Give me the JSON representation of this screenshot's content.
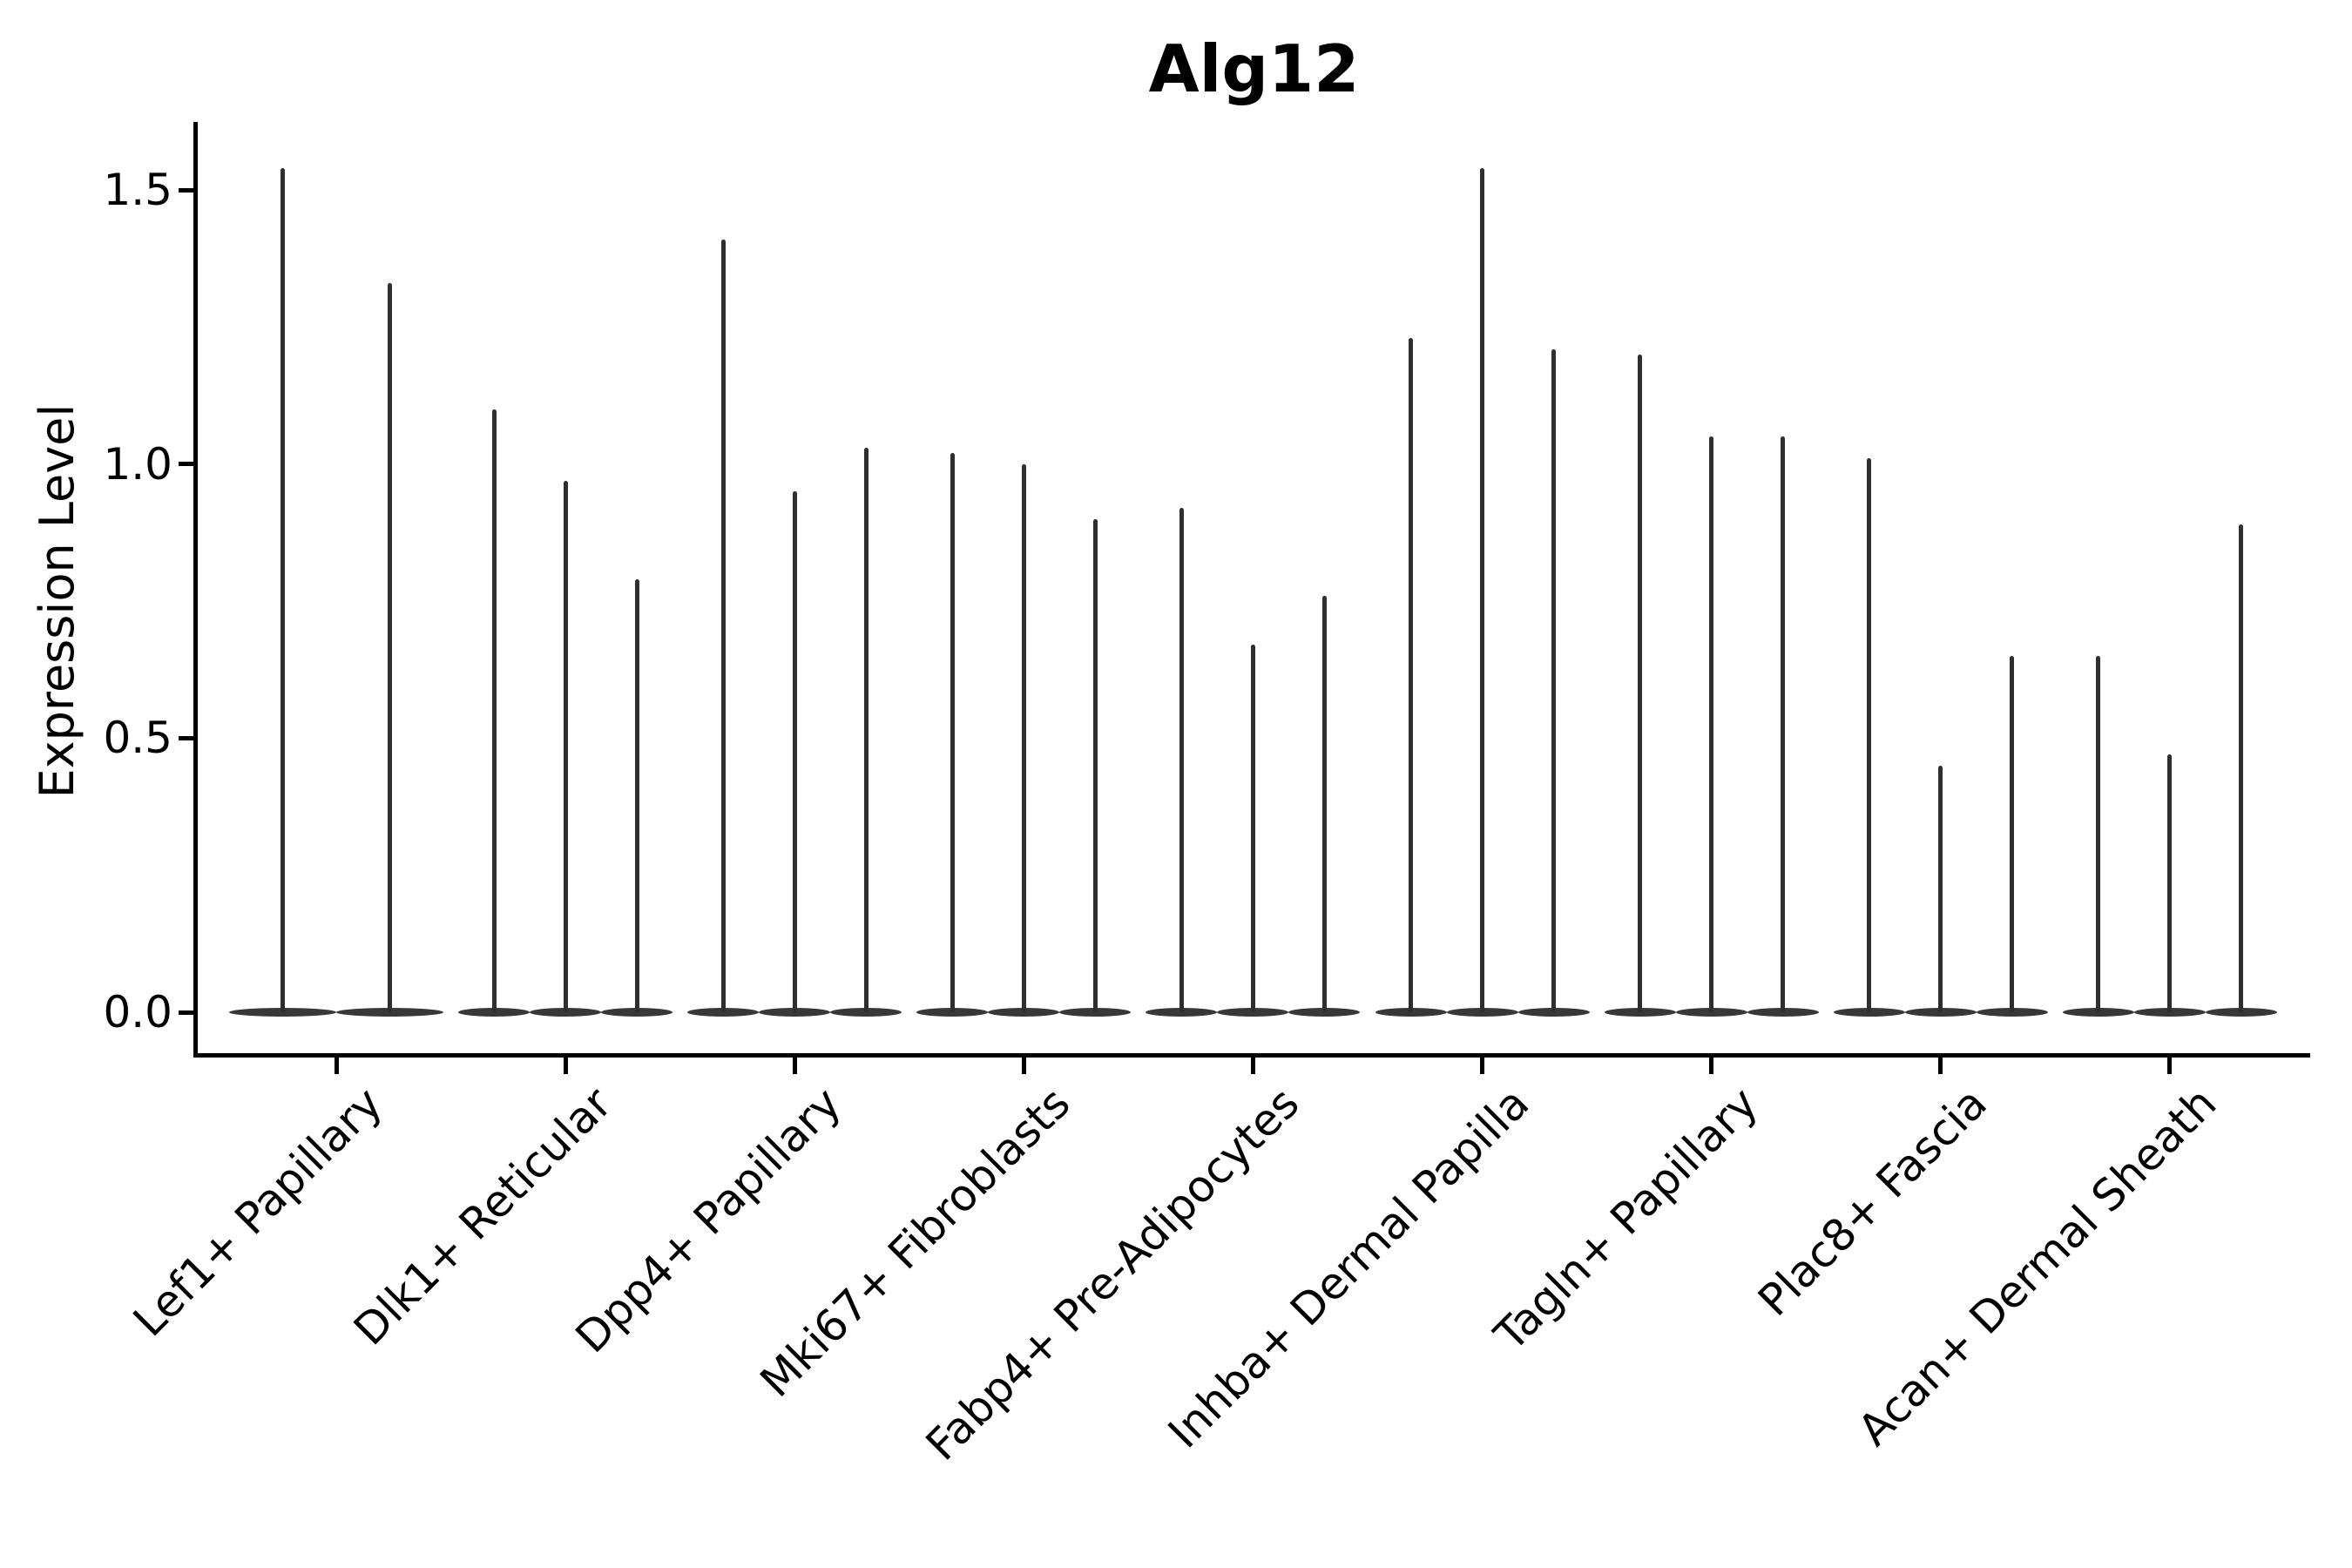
{
  "page": {
    "background": "#ffffff"
  },
  "chart_data": {
    "type": "violin",
    "title": "Alg12",
    "ylabel": "Expression Level",
    "xlabel": "",
    "yticks": [
      0.0,
      0.5,
      1.0,
      1.5
    ],
    "ylim": [
      -0.075,
      1.625
    ],
    "grid": false,
    "legend": null,
    "violin_shape": "bottom-heavy violin: wide flat lens at 0 with a thin spike rising to the maximum expression value",
    "groups": [
      {
        "label": "Lef1+ Papillary",
        "violin_maxima": [
          1.54,
          1.33
        ]
      },
      {
        "label": "Dlk1+ Reticular",
        "violin_maxima": [
          1.1,
          0.97,
          0.79
        ]
      },
      {
        "label": "Dpp4+ Papillary",
        "violin_maxima": [
          1.41,
          0.95,
          1.03
        ]
      },
      {
        "label": "Mki67+ Fibroblasts",
        "violin_maxima": [
          1.02,
          1.0,
          0.9
        ]
      },
      {
        "label": "Fabp4+ Pre-Adipocytes",
        "violin_maxima": [
          0.92,
          0.67,
          0.76
        ]
      },
      {
        "label": "Inhba+ Dermal Papilla",
        "violin_maxima": [
          1.23,
          1.54,
          1.21
        ]
      },
      {
        "label": "Tagln+ Papillary",
        "violin_maxima": [
          1.2,
          1.05,
          1.05
        ]
      },
      {
        "label": "Plac8+ Fascia",
        "violin_maxima": [
          1.01,
          0.45,
          0.65
        ]
      },
      {
        "label": "Acan+ Dermal Sheath",
        "violin_maxima": [
          0.65,
          0.47,
          0.89
        ]
      }
    ],
    "colors": {
      "violin": "#333333",
      "axis": "#000000",
      "text": "#000000",
      "background": "#ffffff"
    }
  }
}
